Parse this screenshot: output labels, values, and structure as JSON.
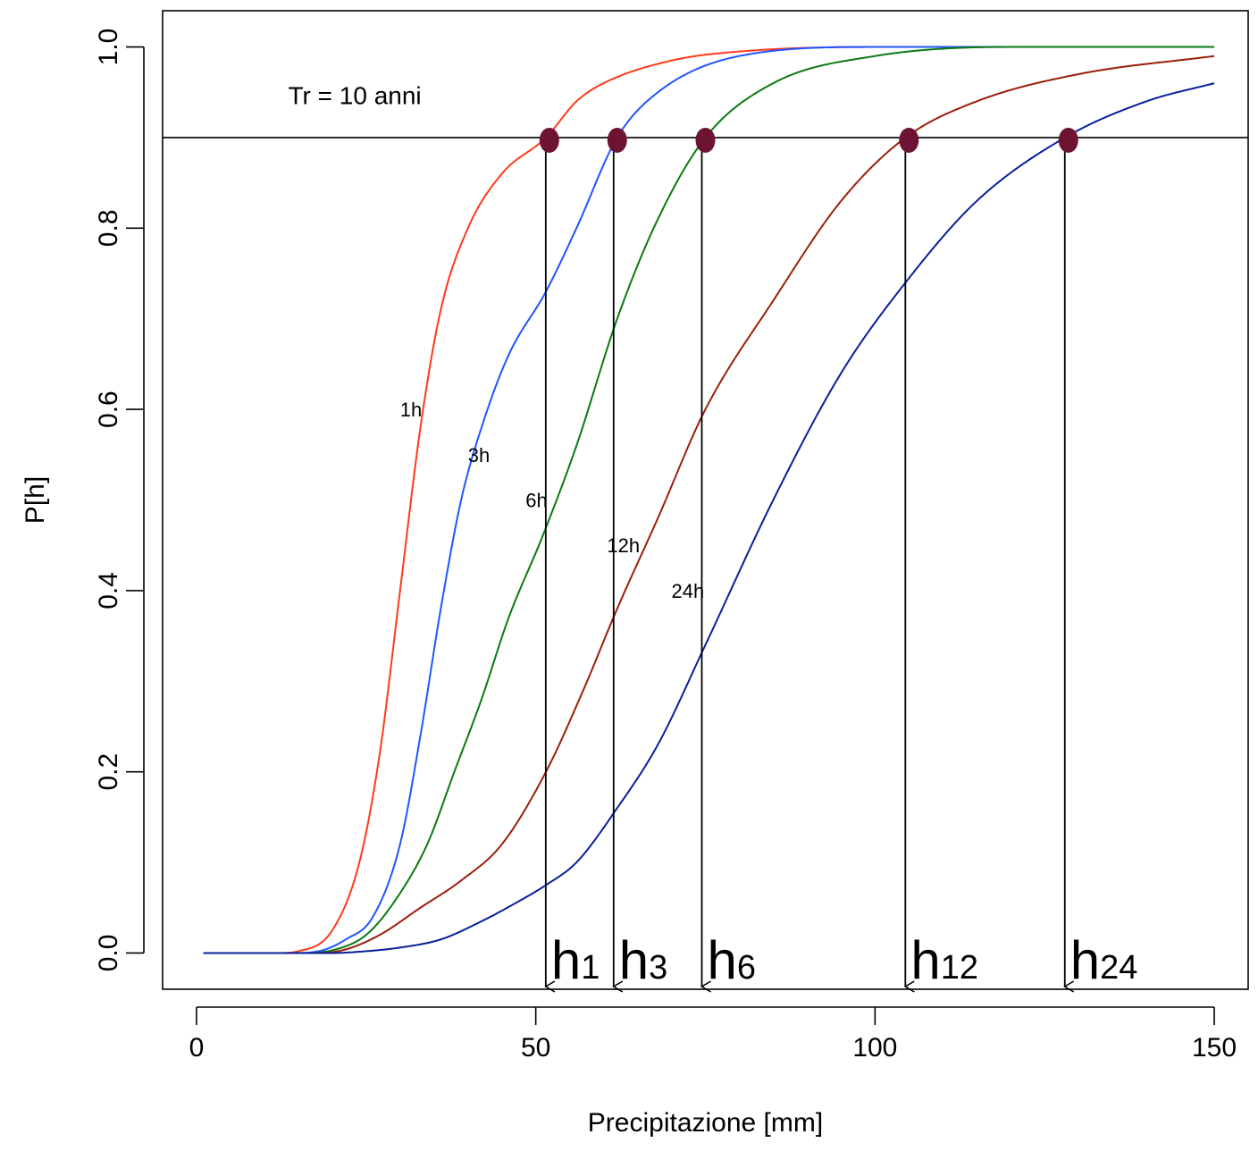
{
  "chart_data": {
    "type": "line",
    "title": "",
    "xlabel": "Precipitazione [mm]",
    "ylabel": "P[h]",
    "xlim": [
      -5,
      155
    ],
    "ylim": [
      -0.04,
      1.04
    ],
    "x_ticks": [
      0,
      50,
      100,
      150
    ],
    "y_ticks": [
      0.0,
      0.2,
      0.4,
      0.6,
      0.8,
      1.0
    ],
    "x_tick_labels": [
      "0",
      "50",
      "100",
      "150"
    ],
    "y_tick_labels": [
      "0.0",
      "0.2",
      "0.4",
      "0.6",
      "0.8",
      "1.0"
    ],
    "grid": false,
    "legend": "none",
    "x_range_plotted": [
      1,
      150
    ],
    "series": [
      {
        "name": "1h",
        "color": "#ff3a1a",
        "values": [
          [
            1,
            0
          ],
          [
            12,
            0
          ],
          [
            15,
            0.002
          ],
          [
            20,
            0.025
          ],
          [
            24,
            0.1
          ],
          [
            27,
            0.22
          ],
          [
            30,
            0.4
          ],
          [
            33,
            0.58
          ],
          [
            36,
            0.71
          ],
          [
            40,
            0.8
          ],
          [
            45,
            0.86
          ],
          [
            51.5,
            0.9
          ],
          [
            56,
            0.94
          ],
          [
            60,
            0.96
          ],
          [
            70,
            0.985
          ],
          [
            80,
            0.995
          ],
          [
            100,
            1.0
          ],
          [
            150,
            1.0
          ]
        ]
      },
      {
        "name": "3h",
        "color": "#1f55ff",
        "values": [
          [
            1,
            0
          ],
          [
            14,
            0
          ],
          [
            18,
            0.002
          ],
          [
            22,
            0.015
          ],
          [
            26,
            0.04
          ],
          [
            30,
            0.12
          ],
          [
            33,
            0.24
          ],
          [
            36,
            0.38
          ],
          [
            39,
            0.5
          ],
          [
            42,
            0.58
          ],
          [
            46,
            0.66
          ],
          [
            51.5,
            0.73
          ],
          [
            56,
            0.8
          ],
          [
            62,
            0.9
          ],
          [
            68,
            0.95
          ],
          [
            80,
            0.99
          ],
          [
            100,
            1.0
          ],
          [
            150,
            1.0
          ]
        ]
      },
      {
        "name": "6h",
        "color": "#0a7a12",
        "values": [
          [
            1,
            0
          ],
          [
            16,
            0
          ],
          [
            21,
            0.005
          ],
          [
            25,
            0.02
          ],
          [
            29,
            0.055
          ],
          [
            34,
            0.12
          ],
          [
            38,
            0.2
          ],
          [
            42,
            0.28
          ],
          [
            46,
            0.37
          ],
          [
            51,
            0.46
          ],
          [
            56,
            0.56
          ],
          [
            62,
            0.7
          ],
          [
            68,
            0.81
          ],
          [
            75,
            0.9
          ],
          [
            85,
            0.96
          ],
          [
            100,
            0.99
          ],
          [
            120,
            1.0
          ],
          [
            150,
            1.0
          ]
        ]
      },
      {
        "name": "12h",
        "color": "#9b1e0a",
        "values": [
          [
            1,
            0
          ],
          [
            18,
            0
          ],
          [
            22,
            0.004
          ],
          [
            27,
            0.02
          ],
          [
            33,
            0.05
          ],
          [
            39,
            0.08
          ],
          [
            45,
            0.12
          ],
          [
            51.5,
            0.2
          ],
          [
            57,
            0.29
          ],
          [
            62,
            0.38
          ],
          [
            68,
            0.48
          ],
          [
            75,
            0.6
          ],
          [
            85,
            0.72
          ],
          [
            95,
            0.83
          ],
          [
            104.5,
            0.9
          ],
          [
            115,
            0.94
          ],
          [
            130,
            0.97
          ],
          [
            150,
            0.99
          ]
        ]
      },
      {
        "name": "24h",
        "color": "#0a1f9b",
        "values": [
          [
            1,
            0
          ],
          [
            20,
            0
          ],
          [
            25,
            0.002
          ],
          [
            30,
            0.006
          ],
          [
            36,
            0.015
          ],
          [
            42,
            0.035
          ],
          [
            47,
            0.055
          ],
          [
            51.5,
            0.075
          ],
          [
            56,
            0.1
          ],
          [
            62,
            0.16
          ],
          [
            68,
            0.23
          ],
          [
            75,
            0.34
          ],
          [
            85,
            0.5
          ],
          [
            95,
            0.64
          ],
          [
            104.5,
            0.74
          ],
          [
            115,
            0.83
          ],
          [
            128,
            0.9
          ],
          [
            140,
            0.94
          ],
          [
            150,
            0.96
          ]
        ]
      }
    ],
    "threshold": {
      "y": 0.9,
      "label": "Tr = 10 anni"
    },
    "points": [
      {
        "x": 52,
        "y": 0.9,
        "label": "h",
        "sub": "1"
      },
      {
        "x": 62,
        "y": 0.9,
        "label": "h",
        "sub": "3"
      },
      {
        "x": 75,
        "y": 0.9,
        "label": "h",
        "sub": "6"
      },
      {
        "x": 105,
        "y": 0.9,
        "label": "h",
        "sub": "12"
      },
      {
        "x": 128.5,
        "y": 0.9,
        "label": "h",
        "sub": "24"
      }
    ],
    "point_color": "#6e1433",
    "curve_labels": [
      {
        "text": "1h",
        "x": 30,
        "y": 0.6
      },
      {
        "text": "3h",
        "x": 40,
        "y": 0.55
      },
      {
        "text": "6h",
        "x": 48.5,
        "y": 0.5
      },
      {
        "text": "12h",
        "x": 60.5,
        "y": 0.45
      },
      {
        "text": "24h",
        "x": 70,
        "y": 0.4
      }
    ]
  }
}
